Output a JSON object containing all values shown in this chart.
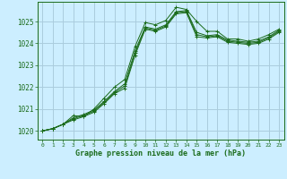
{
  "title": "Graphe pression niveau de la mer (hPa)",
  "bg_color": "#cceeff",
  "grid_color": "#aaccdd",
  "line_color": "#1a6b1a",
  "xlim": [
    -0.5,
    23.5
  ],
  "ylim": [
    1019.6,
    1025.9
  ],
  "yticks": [
    1020,
    1021,
    1022,
    1023,
    1024,
    1025
  ],
  "xticks": [
    0,
    1,
    2,
    3,
    4,
    5,
    6,
    7,
    8,
    9,
    10,
    11,
    12,
    13,
    14,
    15,
    16,
    17,
    18,
    19,
    20,
    21,
    22,
    23
  ],
  "series": [
    [
      1020.0,
      1020.1,
      1020.3,
      1020.7,
      1020.65,
      1021.0,
      1021.5,
      1022.0,
      1022.35,
      1023.85,
      1024.95,
      1024.85,
      1025.05,
      1025.65,
      1025.55,
      1025.0,
      1024.55,
      1024.55,
      1024.2,
      1024.2,
      1024.1,
      1024.2,
      1024.4,
      1024.65
    ],
    [
      1020.0,
      1020.1,
      1020.3,
      1020.6,
      1020.75,
      1020.95,
      1021.35,
      1021.8,
      1022.15,
      1023.65,
      1024.75,
      1024.65,
      1024.85,
      1025.45,
      1025.5,
      1024.5,
      1024.35,
      1024.4,
      1024.15,
      1024.1,
      1024.05,
      1024.1,
      1024.3,
      1024.6
    ],
    [
      1020.0,
      1020.1,
      1020.3,
      1020.55,
      1020.7,
      1020.9,
      1021.3,
      1021.75,
      1022.05,
      1023.55,
      1024.7,
      1024.6,
      1024.8,
      1025.4,
      1025.45,
      1024.4,
      1024.3,
      1024.35,
      1024.1,
      1024.05,
      1024.0,
      1024.05,
      1024.25,
      1024.55
    ],
    [
      1020.0,
      1020.1,
      1020.3,
      1020.5,
      1020.65,
      1020.85,
      1021.25,
      1021.7,
      1021.95,
      1023.45,
      1024.65,
      1024.55,
      1024.75,
      1025.35,
      1025.4,
      1024.3,
      1024.25,
      1024.3,
      1024.05,
      1024.0,
      1023.95,
      1024.0,
      1024.2,
      1024.5
    ]
  ]
}
